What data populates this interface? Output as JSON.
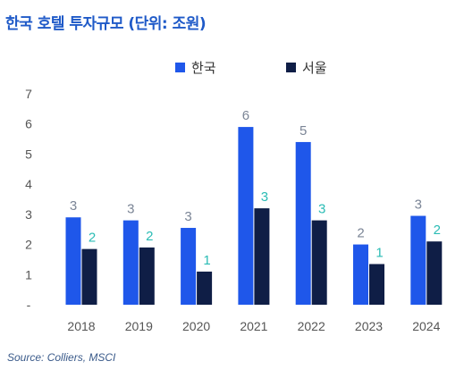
{
  "title": "한국 호텔 투자규모 (단위: 조원)",
  "source": "Source: Colliers, MSCI",
  "colors": {
    "korea": "#1f57ea",
    "seoul": "#0f1e46",
    "korea_label": "#7b8596",
    "seoul_label": "#2bbcb5",
    "axis_text": "#555555"
  },
  "chart_data": {
    "type": "bar",
    "categories": [
      "2018",
      "2019",
      "2020",
      "2021",
      "2022",
      "2023",
      "2024"
    ],
    "series": [
      {
        "name": "한국",
        "values": [
          2.9,
          2.8,
          2.55,
          5.9,
          5.4,
          2.0,
          2.95
        ],
        "labels": [
          "3",
          "3",
          "3",
          "6",
          "5",
          "2",
          "3"
        ]
      },
      {
        "name": "서울",
        "values": [
          1.85,
          1.9,
          1.1,
          3.2,
          2.8,
          1.35,
          2.1
        ],
        "labels": [
          "2",
          "2",
          "1",
          "3",
          "3",
          "1",
          "2"
        ]
      }
    ],
    "yticks": [
      "-",
      "1",
      "2",
      "3",
      "4",
      "5",
      "6",
      "7"
    ],
    "ylim": [
      0,
      7
    ],
    "legend_position": "top",
    "grid": false
  }
}
